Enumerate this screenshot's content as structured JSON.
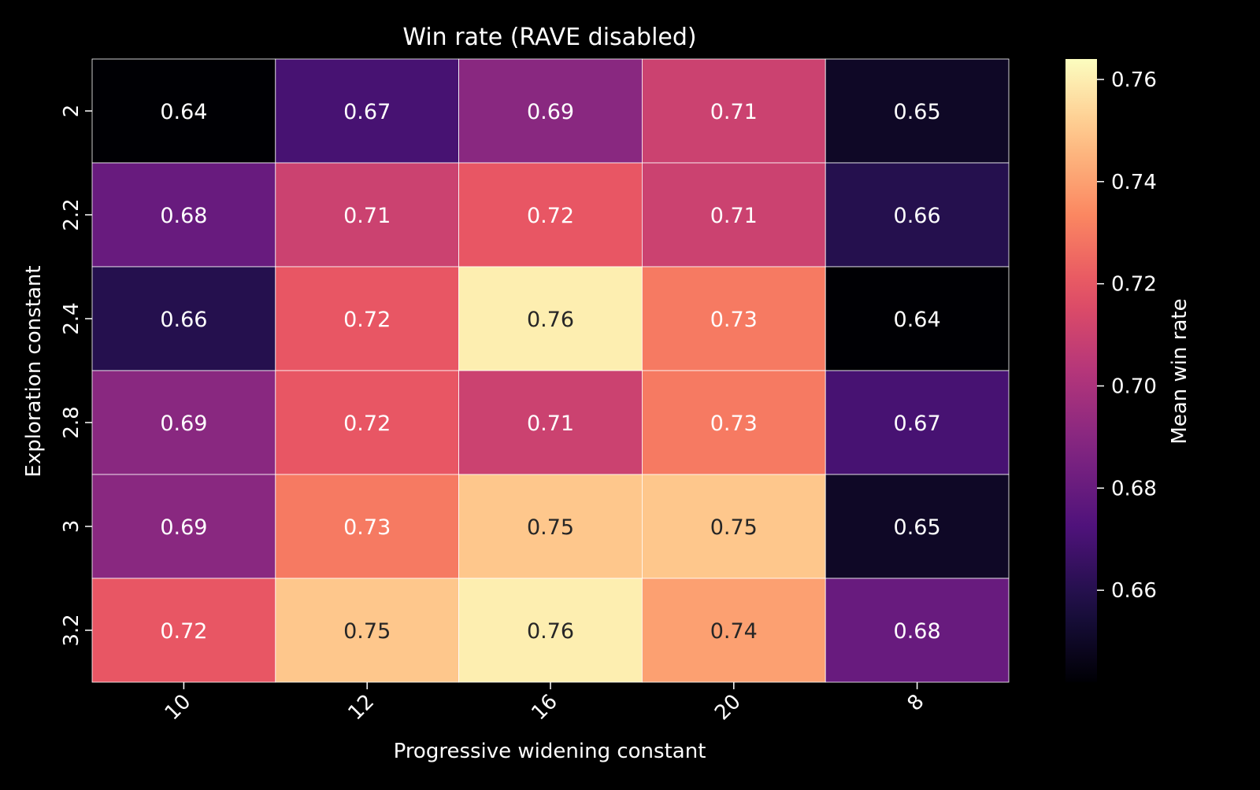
{
  "chart_data": {
    "type": "heatmap",
    "title": "Win rate (RAVE disabled)",
    "xlabel": "Progressive widening constant",
    "ylabel": "Exploration constant",
    "x_categories": [
      "10",
      "12",
      "16",
      "20",
      "8"
    ],
    "y_categories": [
      "2",
      "2.2",
      "2.4",
      "2.8",
      "3",
      "3.2"
    ],
    "values": [
      [
        0.64,
        0.67,
        0.69,
        0.71,
        0.65
      ],
      [
        0.68,
        0.71,
        0.72,
        0.71,
        0.66
      ],
      [
        0.66,
        0.72,
        0.76,
        0.73,
        0.64
      ],
      [
        0.69,
        0.72,
        0.71,
        0.73,
        0.67
      ],
      [
        0.69,
        0.73,
        0.75,
        0.75,
        0.65
      ],
      [
        0.72,
        0.75,
        0.76,
        0.74,
        0.68
      ]
    ],
    "value_labels": [
      [
        "0.64",
        "0.67",
        "0.69",
        "0.71",
        "0.65"
      ],
      [
        "0.68",
        "0.71",
        "0.72",
        "0.71",
        "0.66"
      ],
      [
        "0.66",
        "0.72",
        "0.76",
        "0.73",
        "0.64"
      ],
      [
        "0.69",
        "0.72",
        "0.71",
        "0.73",
        "0.67"
      ],
      [
        "0.69",
        "0.73",
        "0.75",
        "0.75",
        "0.65"
      ],
      [
        "0.72",
        "0.75",
        "0.76",
        "0.74",
        "0.68"
      ]
    ],
    "colormap": "magma",
    "color_range": [
      0.642,
      0.764
    ],
    "colorbar": {
      "label": "Mean win rate",
      "ticks": [
        0.66,
        0.68,
        0.7,
        0.72,
        0.74,
        0.76
      ],
      "tick_labels": [
        "0.66",
        "0.68",
        "0.70",
        "0.72",
        "0.74",
        "0.76"
      ],
      "position": "right"
    },
    "grid": false,
    "cell_border_color": "#ffffff",
    "background_color": "#000000",
    "text_color": "#ffffff",
    "dark_text_color": "#262626"
  }
}
